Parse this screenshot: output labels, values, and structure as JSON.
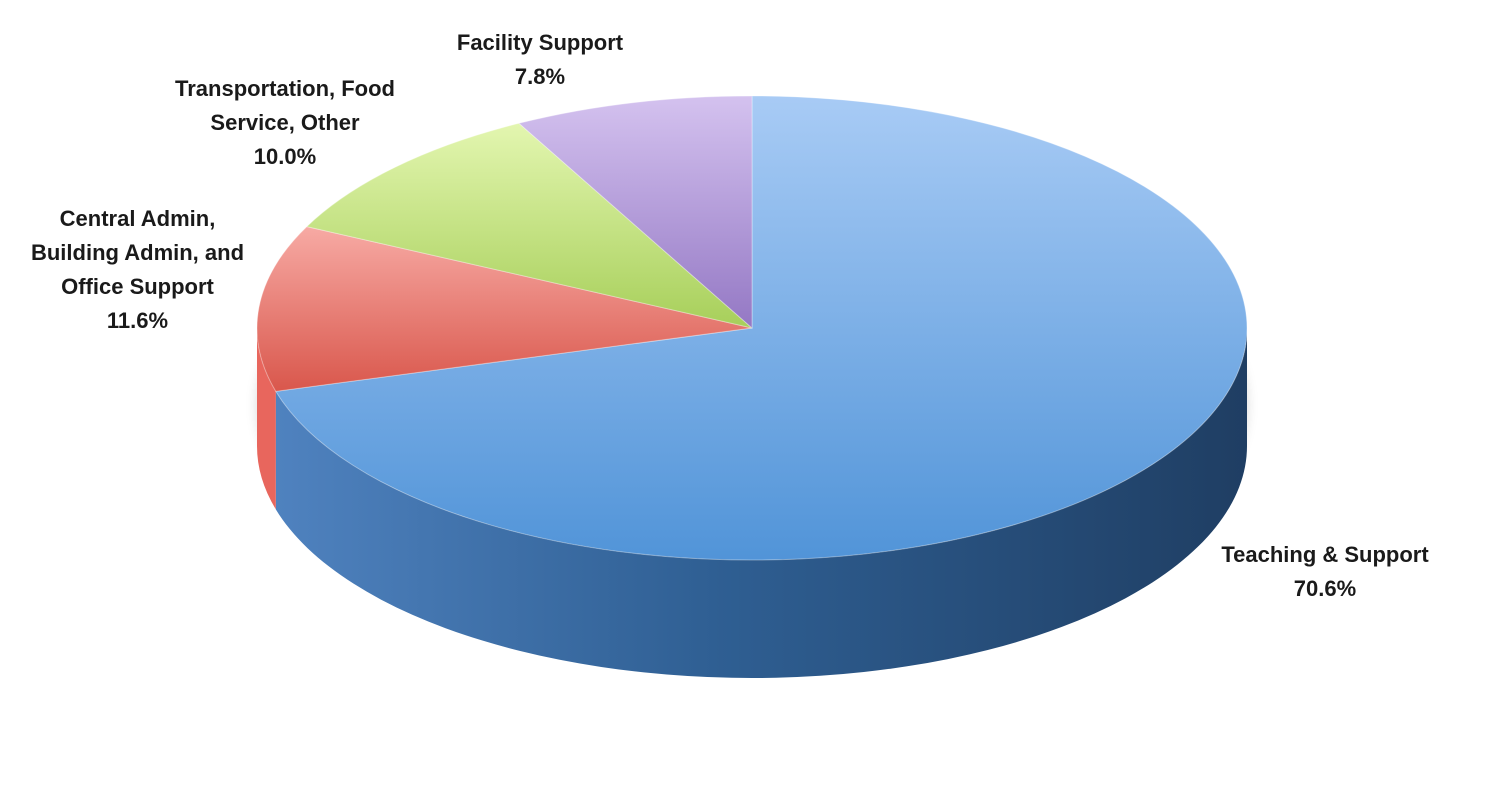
{
  "chart_data": {
    "type": "pie",
    "three_d": true,
    "start_angle_deg": 0,
    "direction": "clockwise",
    "slices": [
      {
        "label": "Teaching & Support",
        "value": 70.6,
        "value_label": "70.6%",
        "color": "#5b9bd5"
      },
      {
        "label": "Central Admin,\nBuilding Admin, and\nOffice Support",
        "value": 11.6,
        "value_label": "11.6%",
        "color": "#e8665d"
      },
      {
        "label": "Transportation, Food\nService, Other",
        "value": 10.0,
        "value_label": "10.0%",
        "color": "#b3d96a"
      },
      {
        "label": "Facility Support",
        "value": 7.8,
        "value_label": "7.8%",
        "color": "#a98bd0"
      }
    ]
  }
}
